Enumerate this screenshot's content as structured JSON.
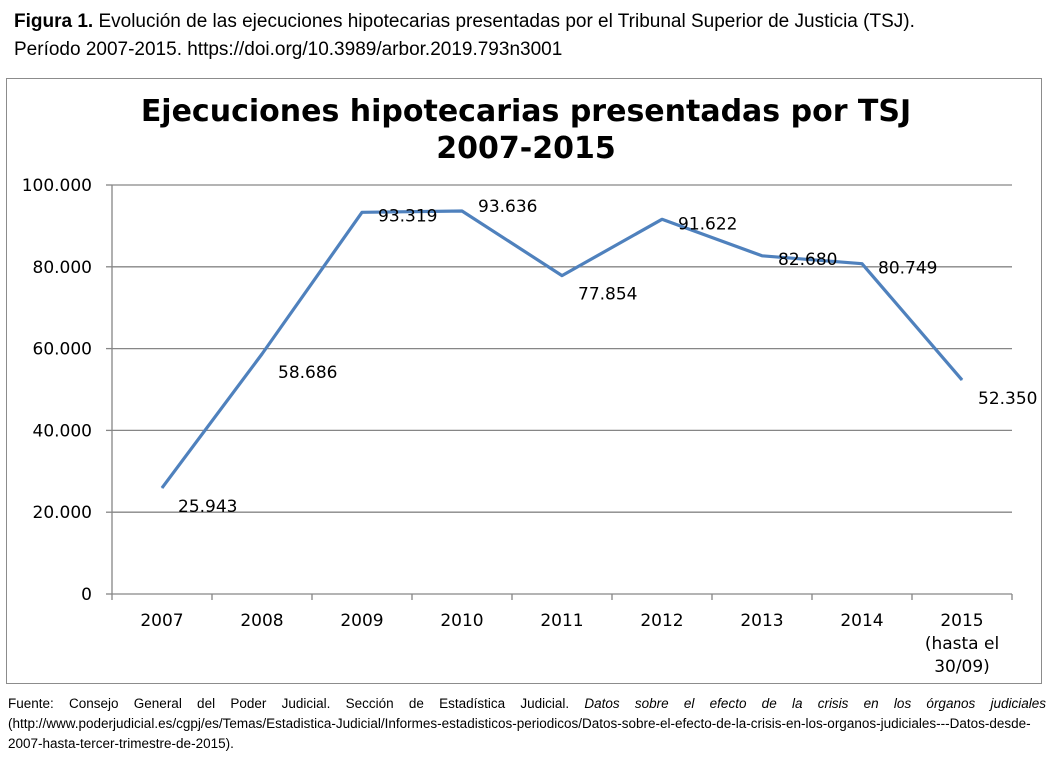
{
  "caption": {
    "label": "Figura 1.",
    "text_line1": "Evolución de las ejecuciones hipotecarias presentadas por el Tribunal Superior de Justicia (TSJ).",
    "text_line2": "Período 2007-2015. https://doi.org/10.3989/arbor.2019.793n3001"
  },
  "chart_data": {
    "type": "line",
    "title_line1": "Ejecuciones hipotecarias presentadas por TSJ",
    "title_line2": "2007-2015",
    "categories": [
      [
        "2007"
      ],
      [
        "2008"
      ],
      [
        "2009"
      ],
      [
        "2010"
      ],
      [
        "2011"
      ],
      [
        "2012"
      ],
      [
        "2013"
      ],
      [
        "2014"
      ],
      [
        "2015",
        "(hasta el",
        "30/09)"
      ]
    ],
    "values": [
      25943,
      58686,
      93319,
      93636,
      77854,
      91622,
      82680,
      80749,
      52350
    ],
    "data_labels": [
      "25.943",
      "58.686",
      "93.319",
      "93.636",
      "77.854",
      "91.622",
      "82.680",
      "80.749",
      "52.350"
    ],
    "y_ticks": [
      0,
      20000,
      40000,
      60000,
      80000,
      100000
    ],
    "y_tick_labels": [
      "0",
      "20.000",
      "40.000",
      "60.000",
      "80.000",
      "100.000"
    ],
    "ylim": [
      0,
      100000
    ],
    "grid": true,
    "line_color": "#4f81bd",
    "grid_color": "#868686"
  },
  "source": {
    "prefix": "Fuente: Consejo General del Poder Judicial. Sección de Estadística Judicial. ",
    "italic": "Datos sobre el efecto de la crisis en los órganos judiciales",
    "suffix": " (http://www.poderjudicial.es/cgpj/es/Temas/Estadistica-Judicial/Informes-estadisticos-periodicos/Datos-sobre-el-efecto-de-la-crisis-en-los-organos-judiciales---Datos-desde-2007-hasta-tercer-trimestre-de-2015)."
  }
}
